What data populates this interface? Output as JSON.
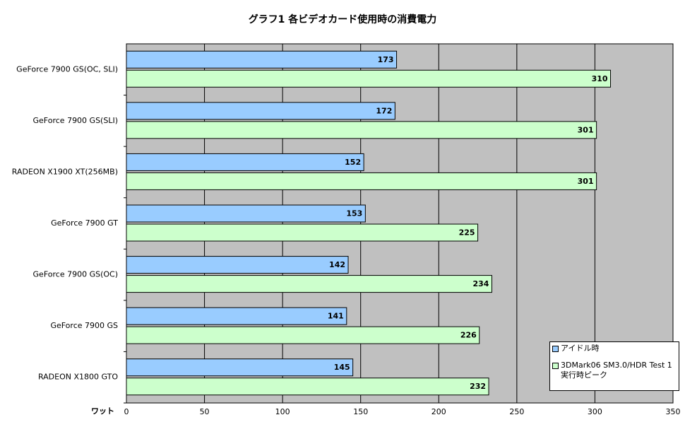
{
  "chart_data": {
    "type": "barh",
    "title": "グラフ1 各ビデオカード使用時の消費電力",
    "x_label": "ワット",
    "categories": [
      "GeForce 7900 GS(OC, SLI)",
      "GeForce 7900 GS(SLI)",
      "RADEON X1900 XT(256MB)",
      "GeForce 7900 GT",
      "GeForce 7900 GS(OC)",
      "GeForce 7900 GS",
      "RADEON X1800 GTO"
    ],
    "series": [
      {
        "name": "アイドル時",
        "color": "#99ccff",
        "values": [
          173,
          172,
          152,
          153,
          142,
          141,
          145
        ]
      },
      {
        "name": "3DMark06 SM3.0/HDR Test 1 実行時ピーク",
        "color": "#ccffcc",
        "values": [
          310,
          301,
          301,
          225,
          234,
          226,
          232
        ]
      }
    ],
    "xlim": [
      0,
      350
    ],
    "xticks": [
      0,
      50,
      100,
      150,
      200,
      250,
      300,
      350
    ],
    "grid": true
  }
}
